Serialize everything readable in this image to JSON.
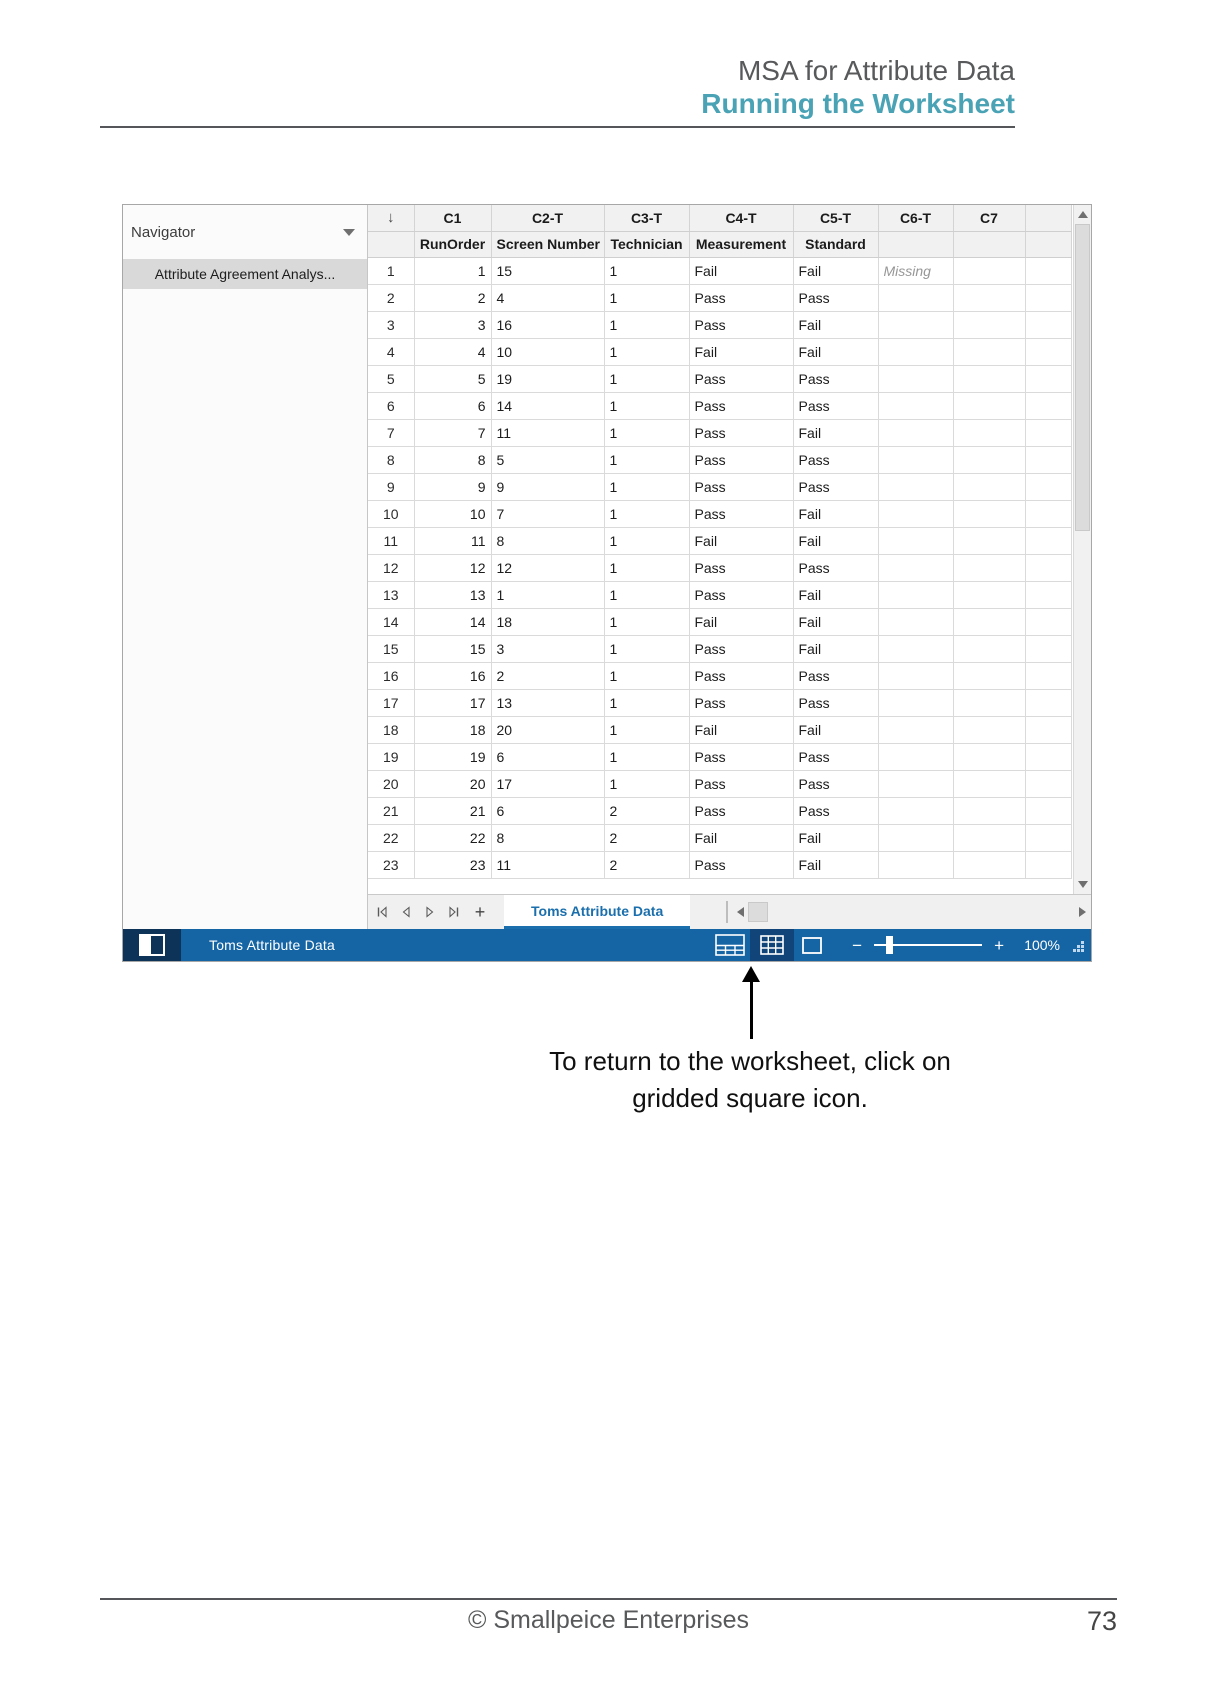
{
  "doc": {
    "header": {
      "title": "MSA for Attribute Data",
      "subtitle": "Running the Worksheet"
    },
    "caption": {
      "line1": "To return to the worksheet, click on",
      "line2": "gridded square icon."
    },
    "footer": {
      "copyright": "© Smallpeice Enterprises",
      "page_number": "73"
    }
  },
  "minitab": {
    "navigator": {
      "title": "Navigator",
      "items": [
        {
          "label": "Attribute Agreement Analys...",
          "selected": true
        }
      ]
    },
    "worksheet": {
      "columns": [
        {
          "id": "",
          "name": ""
        },
        {
          "id": "C1",
          "name": "RunOrder"
        },
        {
          "id": "C2-T",
          "name": "Screen Number"
        },
        {
          "id": "C3-T",
          "name": "Technician"
        },
        {
          "id": "C4-T",
          "name": "Measurement"
        },
        {
          "id": "C5-T",
          "name": "Standard"
        },
        {
          "id": "C6-T",
          "name": ""
        },
        {
          "id": "C7",
          "name": ""
        }
      ],
      "rows": [
        [
          "1",
          "1",
          "15",
          "1",
          "Fail",
          "Fail",
          "Missing",
          ""
        ],
        [
          "2",
          "2",
          "4",
          "1",
          "Pass",
          "Pass",
          "",
          ""
        ],
        [
          "3",
          "3",
          "16",
          "1",
          "Pass",
          "Fail",
          "",
          ""
        ],
        [
          "4",
          "4",
          "10",
          "1",
          "Fail",
          "Fail",
          "",
          ""
        ],
        [
          "5",
          "5",
          "19",
          "1",
          "Pass",
          "Pass",
          "",
          ""
        ],
        [
          "6",
          "6",
          "14",
          "1",
          "Pass",
          "Pass",
          "",
          ""
        ],
        [
          "7",
          "7",
          "11",
          "1",
          "Pass",
          "Fail",
          "",
          ""
        ],
        [
          "8",
          "8",
          "5",
          "1",
          "Pass",
          "Pass",
          "",
          ""
        ],
        [
          "9",
          "9",
          "9",
          "1",
          "Pass",
          "Pass",
          "",
          ""
        ],
        [
          "10",
          "10",
          "7",
          "1",
          "Pass",
          "Fail",
          "",
          ""
        ],
        [
          "11",
          "11",
          "8",
          "1",
          "Fail",
          "Fail",
          "",
          ""
        ],
        [
          "12",
          "12",
          "12",
          "1",
          "Pass",
          "Pass",
          "",
          ""
        ],
        [
          "13",
          "13",
          "1",
          "1",
          "Pass",
          "Fail",
          "",
          ""
        ],
        [
          "14",
          "14",
          "18",
          "1",
          "Fail",
          "Fail",
          "",
          ""
        ],
        [
          "15",
          "15",
          "3",
          "1",
          "Pass",
          "Fail",
          "",
          ""
        ],
        [
          "16",
          "16",
          "2",
          "1",
          "Pass",
          "Pass",
          "",
          ""
        ],
        [
          "17",
          "17",
          "13",
          "1",
          "Pass",
          "Pass",
          "",
          ""
        ],
        [
          "18",
          "18",
          "20",
          "1",
          "Fail",
          "Fail",
          "",
          ""
        ],
        [
          "19",
          "19",
          "6",
          "1",
          "Pass",
          "Pass",
          "",
          ""
        ],
        [
          "20",
          "20",
          "17",
          "1",
          "Pass",
          "Pass",
          "",
          ""
        ],
        [
          "21",
          "21",
          "6",
          "2",
          "Pass",
          "Pass",
          "",
          ""
        ],
        [
          "22",
          "22",
          "8",
          "2",
          "Fail",
          "Fail",
          "",
          ""
        ],
        [
          "23",
          "23",
          "11",
          "2",
          "Pass",
          "Fail",
          "",
          ""
        ]
      ]
    },
    "tabs": {
      "active_label": "Toms Attribute Data"
    },
    "status_bar": {
      "worksheet_name": "Toms Attribute Data",
      "zoom_label": "100%"
    },
    "colors": {
      "accent_teal": "#4AA2B5",
      "status_bar_blue": "#1565A5",
      "tab_blue": "#1B6FAD",
      "selected_icon_bg": "#11457A",
      "left_block_navy": "#0D3359"
    },
    "icons": {
      "status_left": "sidebar-split-square-icon",
      "status_output": "output-pane-icon",
      "status_worksheet": "gridded-square-icon",
      "status_graph": "empty-square-icon"
    }
  }
}
